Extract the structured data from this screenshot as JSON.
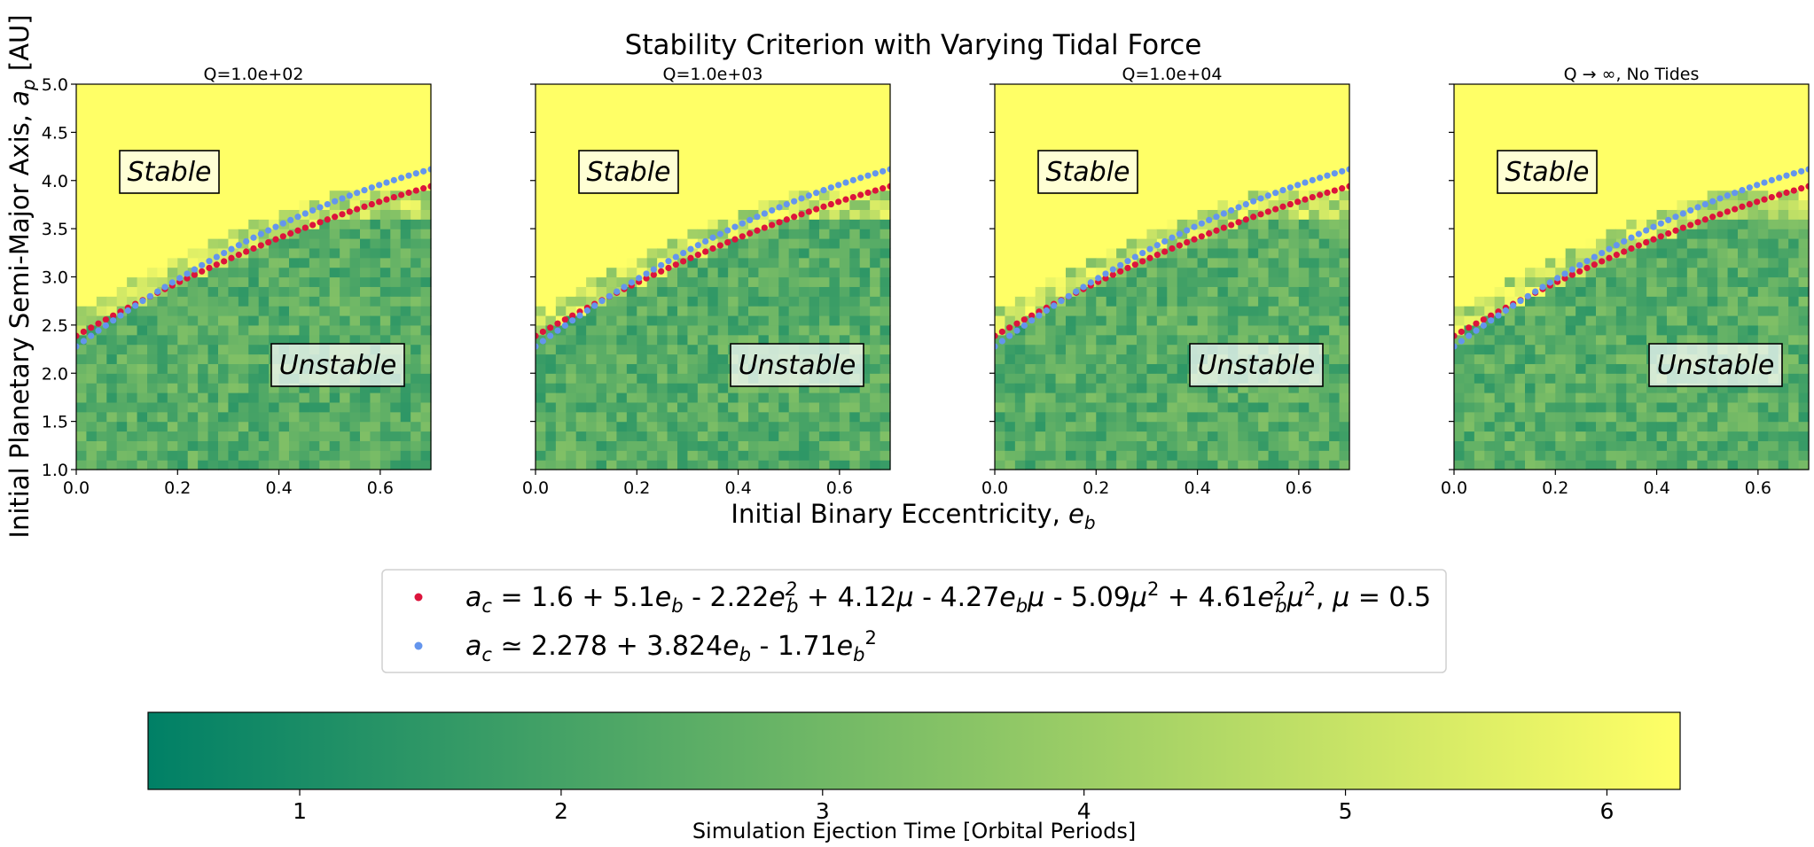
{
  "title": "Stability Criterion with Varying Tidal Force",
  "xlabel": "Initial Binary Eccentricity, e_b",
  "ylabel": "Initial Planetary Semi-Major Axis, a_p [AU]",
  "region_labels": {
    "stable": "Stable",
    "unstable": "Unstable"
  },
  "legend": {
    "red_formula": "a_c = 1.6 + 5.1e_b - 2.22e_b^2 + 4.12μ - 4.27e_bμ - 5.09μ^2 + 4.61e_b^2μ^2, μ = 0.5",
    "blue_formula": "a_c ≃ 2.278 + 3.824e_b - 1.71e_b^2"
  },
  "colorbar": {
    "label": "Simulation Ejection Time [Orbital Periods]",
    "ticks": [
      "1",
      "2",
      "3",
      "4",
      "5",
      "6"
    ],
    "range": [
      0.42,
      6.28
    ],
    "colors": [
      "#008066",
      "#ffff66"
    ]
  },
  "colors": {
    "red_series": "#dc143c",
    "blue_series": "#6495ed",
    "stable": "#ffff66",
    "unstable_dark": "#1a8c60"
  },
  "chart_data": {
    "type": "heatmap",
    "panels": [
      {
        "title": "Q=1.0e+02"
      },
      {
        "title": "Q=1.0e+03"
      },
      {
        "title": "Q=1.0e+04"
      },
      {
        "title": "Q → ∞, No Tides"
      }
    ],
    "xlim": [
      0,
      0.7
    ],
    "ylim": [
      1.0,
      5.0
    ],
    "x_ticks": [
      "0.0",
      "0.2",
      "0.4",
      "0.6"
    ],
    "y_ticks": [
      "1.0",
      "1.5",
      "2.0",
      "2.5",
      "3.0",
      "3.5",
      "4.0",
      "4.5",
      "5.0"
    ],
    "grid": {
      "e_bins": 35,
      "a_bins": 40
    },
    "series": [
      {
        "name": "red_formula",
        "mu": 0.5,
        "coefficients": {
          "const": 1.6,
          "e": 5.1,
          "e2": -2.22,
          "mu": 4.12,
          "e_mu": -4.27,
          "mu2": -5.09,
          "e2_mu2": 4.61
        }
      },
      {
        "name": "blue_formula",
        "coefficients": {
          "const": 2.278,
          "e": 3.824,
          "e2": -1.71
        }
      }
    ],
    "n_points": 49
  }
}
